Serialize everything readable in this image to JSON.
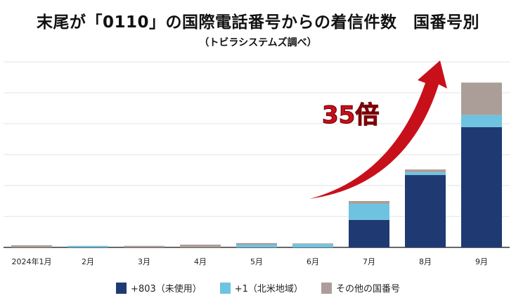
{
  "chart_data": {
    "type": "bar",
    "stacked": true,
    "title": "末尾が「0110」の国際電話番号からの着信件数　国番号別",
    "subtitle": "（トビラシステムズ調べ）",
    "categories": [
      "2024年1月",
      "2月",
      "3月",
      "4月",
      "5月",
      "6月",
      "7月",
      "8月",
      "9月"
    ],
    "series": [
      {
        "name": "+803（未使用）",
        "color": "#1f3a73",
        "values": [
          0,
          0,
          0,
          0,
          0,
          0,
          0.89,
          2.34,
          3.89
        ]
      },
      {
        "name": "+1（北米地域）",
        "color": "#6ec3e0",
        "values": [
          0,
          0.05,
          0,
          0,
          0.09,
          0.11,
          0.52,
          0.09,
          0.39
        ]
      },
      {
        "name": "その他の国番号",
        "color": "#ab9e98",
        "values": [
          0.07,
          0,
          0.05,
          0.09,
          0.05,
          0.02,
          0.09,
          0.09,
          1.05
        ]
      }
    ],
    "ylim": [
      0,
      6
    ],
    "grid": true,
    "y_tick_labels_shown": false,
    "legend_position": "bottom",
    "annotation": {
      "text": "35倍",
      "color": "#c8101a",
      "arrow": "rising red arrow"
    }
  }
}
